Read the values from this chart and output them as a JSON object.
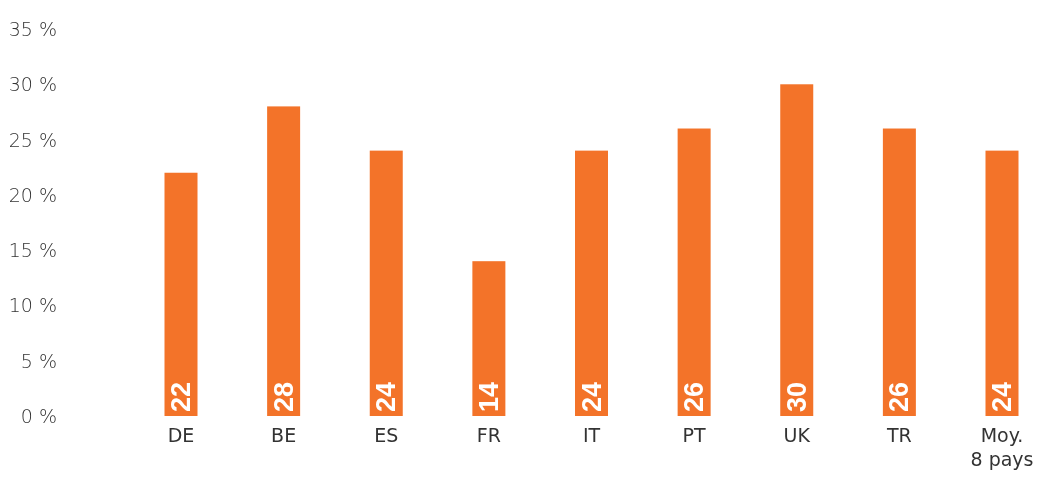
{
  "chart_data": {
    "type": "bar",
    "categories": [
      "DE",
      "BE",
      "ES",
      "FR",
      "IT",
      "PT",
      "UK",
      "TR",
      "Moy.\n8 pays"
    ],
    "values": [
      22,
      28,
      24,
      14,
      24,
      26,
      30,
      26,
      24
    ],
    "color": "#f37329",
    "data_labels": true,
    "ylim": [
      0,
      35
    ],
    "yticks": [
      {
        "value": 0,
        "label": "0 %"
      },
      {
        "value": 5,
        "label": "5 %"
      },
      {
        "value": 10,
        "label": "10 %"
      },
      {
        "value": 15,
        "label": "15 %"
      },
      {
        "value": 20,
        "label": "20 %"
      },
      {
        "value": 25,
        "label": "25 %"
      },
      {
        "value": 30,
        "label": "30 %"
      },
      {
        "value": 35,
        "label": "35 %"
      }
    ],
    "grid": false
  }
}
